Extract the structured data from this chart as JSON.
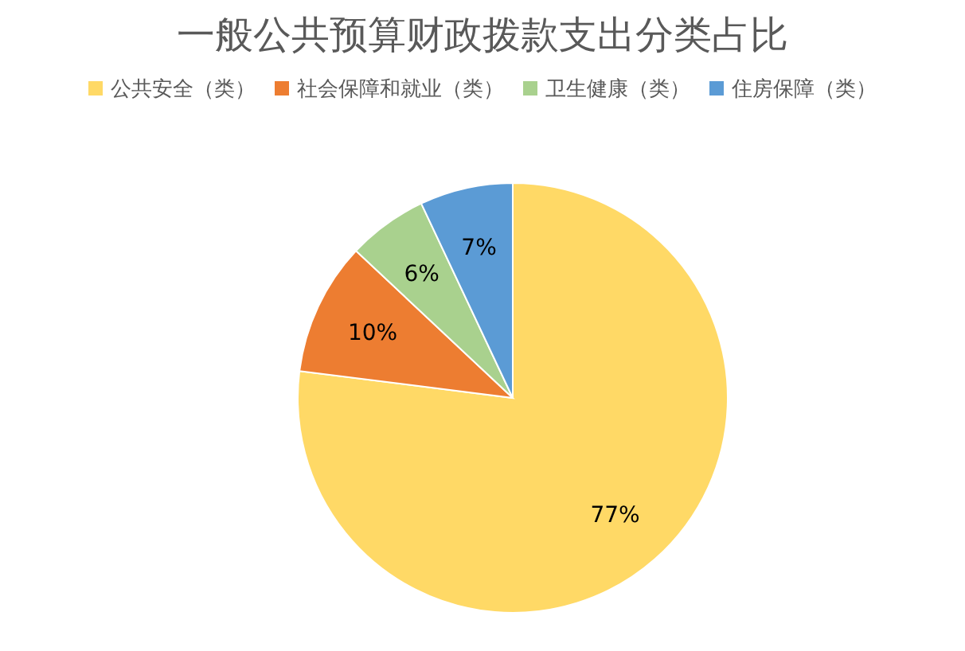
{
  "chart_data": {
    "type": "pie",
    "title": "一般公共预算财政拨款支出分类占比",
    "categories": [
      "公共安全（类）",
      "社会保障和就业（类）",
      "卫生健康（类）",
      "住房保障（类）"
    ],
    "values": [
      77,
      10,
      6,
      7
    ],
    "colors": [
      "#ffd966",
      "#ed7d31",
      "#a9d18e",
      "#5b9bd5"
    ],
    "value_labels": [
      "77%",
      "10%",
      "6%",
      "7%"
    ],
    "legend": "top"
  }
}
